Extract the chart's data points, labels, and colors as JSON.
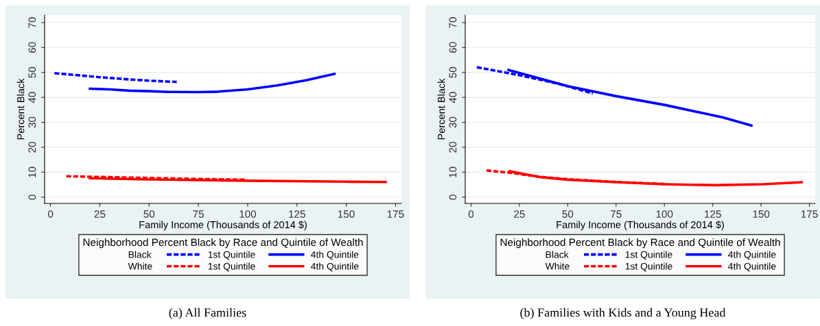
{
  "chart_data": [
    {
      "type": "line",
      "title": "(a) All Families",
      "xlabel": "Family Income (Thousands of 2014 $)",
      "ylabel": "Percent Black",
      "legend_title": "Neighborhood Percent Black by Race and Quintile of Wealth",
      "annotations": [
        "Black",
        "White"
      ],
      "xlim": [
        -3,
        178
      ],
      "ylim": [
        -2.5,
        73
      ],
      "xticks": [
        0,
        25,
        50,
        75,
        100,
        125,
        150,
        175
      ],
      "yticks": [
        0,
        10,
        20,
        30,
        40,
        50,
        60,
        70
      ],
      "grid": "y",
      "legend": "bottom",
      "series": [
        {
          "name": "1st Quintile",
          "color": "#0000ff",
          "line_style": "dashed",
          "x": [
            2,
            15,
            25,
            40,
            50,
            64
          ],
          "values": [
            49.7,
            48.8,
            48.1,
            47.2,
            46.7,
            46.2
          ]
        },
        {
          "name": "4th Quintile",
          "color": "#0000ff",
          "line_style": "solid",
          "x": [
            20,
            30,
            40,
            50,
            60,
            75,
            85,
            100,
            115,
            130,
            144
          ],
          "values": [
            43.5,
            43.2,
            42.7,
            42.5,
            42.2,
            42.1,
            42.3,
            43.2,
            44.8,
            46.9,
            49.4
          ]
        },
        {
          "name": "1st Quintile",
          "color": "#ff0000",
          "line_style": "dashed",
          "x": [
            8,
            25,
            50,
            75,
            99
          ],
          "values": [
            8.4,
            8.1,
            7.7,
            7.3,
            7.0
          ]
        },
        {
          "name": "4th Quintile",
          "color": "#ff0000",
          "line_style": "solid",
          "x": [
            20,
            50,
            100,
            150,
            170
          ],
          "values": [
            7.6,
            7.1,
            6.6,
            6.2,
            6.1
          ]
        }
      ]
    },
    {
      "type": "line",
      "title": "(b) Families with Kids and a Young Head",
      "xlabel": "Family Income (Thousands of 2014 $)",
      "ylabel": "Percent Black",
      "legend_title": "Neighborhood Percent Black by Race and Quintile of Wealth",
      "annotations": [
        "Black",
        "White"
      ],
      "xlim": [
        -3,
        178
      ],
      "ylim": [
        -2.5,
        73
      ],
      "xticks": [
        0,
        25,
        50,
        75,
        100,
        125,
        150,
        175
      ],
      "yticks": [
        0,
        10,
        20,
        30,
        40,
        50,
        60,
        70
      ],
      "grid": "y",
      "legend": "bottom",
      "series": [
        {
          "name": "1st Quintile",
          "color": "#0000ff",
          "line_style": "dashed",
          "x": [
            3,
            25,
            45,
            63
          ],
          "values": [
            52.1,
            48.9,
            45.5,
            41.6
          ]
        },
        {
          "name": "4th Quintile",
          "color": "#0000ff",
          "line_style": "solid",
          "x": [
            19.4,
            50,
            75,
            100,
            130,
            145
          ],
          "values": [
            51,
            44.5,
            40.5,
            37,
            32,
            28.7
          ]
        },
        {
          "name": "1st Quintile",
          "color": "#ff0000",
          "line_style": "dashed",
          "x": [
            8,
            20,
            35,
            50,
            75,
            100
          ],
          "values": [
            10.7,
            9.8,
            8.2,
            7.2,
            6.1,
            5.3
          ]
        },
        {
          "name": "4th Quintile",
          "color": "#ff0000",
          "line_style": "solid",
          "x": [
            20,
            36,
            50,
            75,
            100,
            126,
            151,
            171
          ],
          "values": [
            10.4,
            8.0,
            7.0,
            6.0,
            5.2,
            4.8,
            5.2,
            6.0
          ]
        }
      ]
    }
  ]
}
